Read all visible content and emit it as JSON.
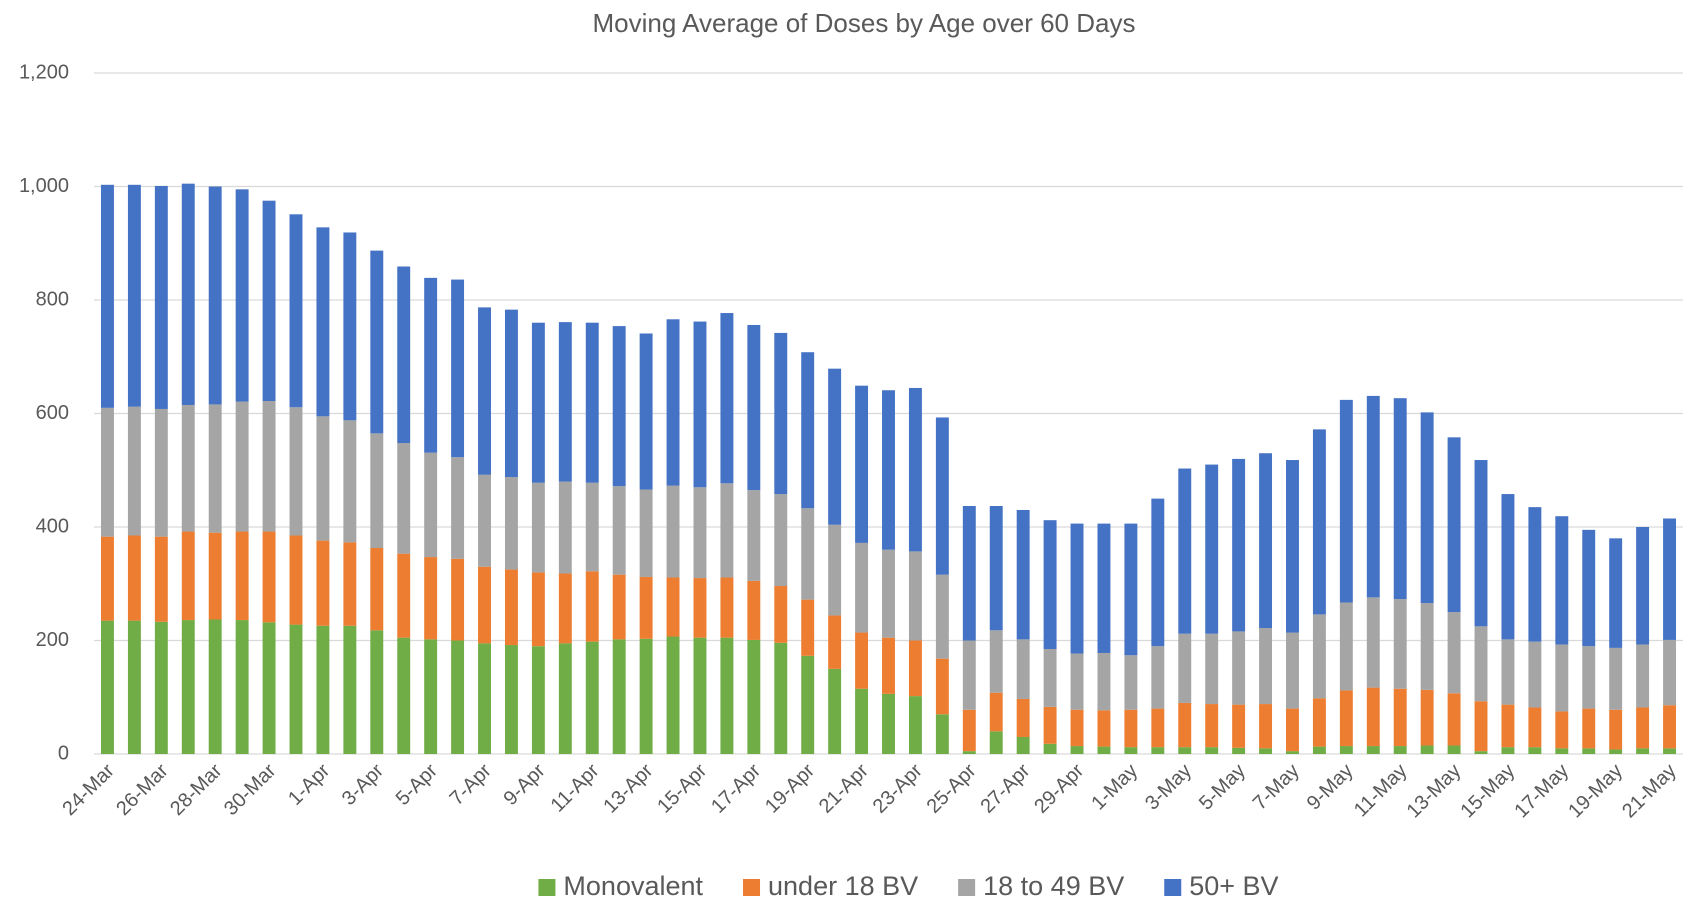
{
  "chart_data": {
    "type": "stacked_bar",
    "title": "Moving Average of Doses by Age over 60 Days",
    "categories": [
      "24-Mar",
      null,
      "26-Mar",
      null,
      "28-Mar",
      null,
      "30-Mar",
      null,
      "1-Apr",
      null,
      "3-Apr",
      null,
      "5-Apr",
      null,
      "7-Apr",
      null,
      "9-Apr",
      null,
      "11-Apr",
      null,
      "13-Apr",
      null,
      "15-Apr",
      null,
      "17-Apr",
      null,
      "19-Apr",
      null,
      "21-Apr",
      null,
      "23-Apr",
      null,
      "25-Apr",
      null,
      "27-Apr",
      null,
      "29-Apr",
      null,
      "1-May",
      null,
      "3-May",
      null,
      "5-May",
      null,
      "7-May",
      null,
      "9-May",
      null,
      "11-May",
      null,
      "13-May",
      null,
      "15-May",
      null,
      "17-May",
      null,
      "19-May",
      null,
      "21-May"
    ],
    "series": [
      {
        "name": "Monovalent",
        "color": "#70ad47",
        "values": [
          235,
          235,
          233,
          236,
          237,
          236,
          232,
          228,
          226,
          226,
          218,
          205,
          202,
          200,
          195,
          192,
          190,
          195,
          198,
          202,
          203,
          207,
          205,
          205,
          201,
          196,
          173,
          150,
          115,
          106,
          102,
          70,
          5,
          40,
          30,
          18,
          14,
          13,
          12,
          12,
          12,
          12,
          11,
          10,
          5,
          13,
          14,
          14,
          14,
          15,
          15,
          5,
          12,
          12,
          10,
          10,
          8,
          10,
          10
        ]
      },
      {
        "name": "under 18 BV",
        "color": "#ed7d31",
        "values": [
          148,
          150,
          150,
          156,
          153,
          156,
          160,
          157,
          150,
          147,
          145,
          148,
          145,
          144,
          135,
          133,
          130,
          123,
          124,
          114,
          109,
          104,
          105,
          106,
          104,
          100,
          99,
          94,
          99,
          99,
          98,
          98,
          73,
          68,
          67,
          65,
          64,
          64,
          66,
          68,
          78,
          76,
          76,
          78,
          75,
          85,
          98,
          103,
          101,
          98,
          92,
          88,
          75,
          70,
          65,
          70,
          70,
          72,
          76
        ]
      },
      {
        "name": "18 to 49 BV",
        "color": "#a5a5a5",
        "values": [
          227,
          227,
          225,
          223,
          226,
          229,
          230,
          226,
          219,
          215,
          202,
          195,
          184,
          179,
          162,
          163,
          158,
          162,
          156,
          156,
          154,
          162,
          160,
          166,
          160,
          162,
          161,
          160,
          158,
          155,
          157,
          148,
          122,
          110,
          105,
          102,
          99,
          101,
          96,
          110,
          122,
          124,
          129,
          134,
          134,
          148,
          155,
          159,
          158,
          153,
          143,
          132,
          115,
          116,
          118,
          110,
          109,
          111,
          115
        ]
      },
      {
        "name": "50+ BV",
        "color": "#4472c4",
        "values": [
          393,
          391,
          393,
          390,
          384,
          374,
          353,
          340,
          333,
          331,
          322,
          311,
          308,
          313,
          295,
          295,
          282,
          281,
          282,
          282,
          275,
          293,
          292,
          300,
          291,
          284,
          275,
          275,
          277,
          281,
          288,
          277,
          237,
          219,
          228,
          227,
          229,
          228,
          232,
          260,
          291,
          298,
          304,
          308,
          304,
          326,
          357,
          355,
          354,
          336,
          308,
          293,
          256,
          237,
          226,
          205,
          193,
          207,
          214
        ]
      }
    ],
    "ylim": [
      0,
      1200
    ],
    "yticks": [
      0,
      {
        "value": 200,
        "label": "200"
      },
      {
        "value": 400,
        "label": "400"
      },
      {
        "value": 600,
        "label": "600"
      },
      {
        "value": 800,
        "label": "800"
      },
      {
        "value": 1000,
        "label": "1,000"
      },
      {
        "value": 1200,
        "label": "1,200"
      }
    ],
    "grid": true,
    "legend": "bottom"
  }
}
